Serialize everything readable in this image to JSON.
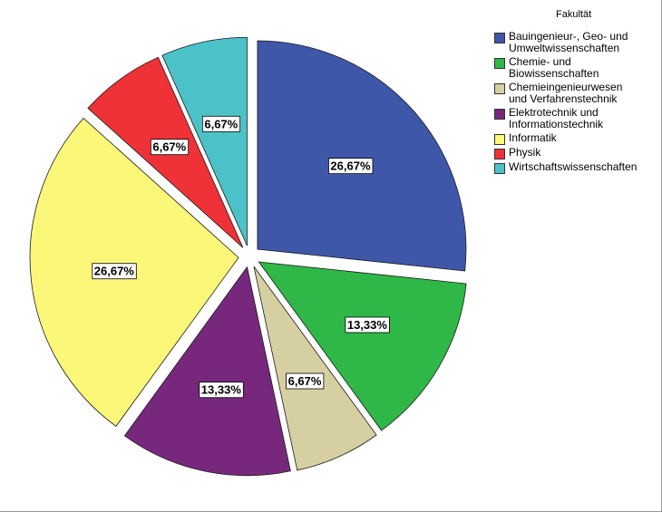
{
  "chart_data": {
    "type": "pie",
    "legend_title": "Fakultät",
    "legend_position": "top-right",
    "slices": [
      {
        "name": "Bauingenieur-, Geo- und\nUmweltwissenschaften",
        "value": 26.67,
        "label": "26,67%",
        "color": "#3f57a8",
        "exploded": true
      },
      {
        "name": "Chemie- und\nBiowissenschaften",
        "value": 13.33,
        "label": "13,33%",
        "color": "#2fb847",
        "exploded": true
      },
      {
        "name": "Chemieingenieurwesen\nund Verfahrenstechnik",
        "value": 6.67,
        "label": "6,67%",
        "color": "#d6cfa1",
        "exploded": true
      },
      {
        "name": "Elektrotechnik und\nInformationstechnik",
        "value": 13.33,
        "label": "13,33%",
        "color": "#77287c",
        "exploded": true
      },
      {
        "name": "Informatik",
        "value": 26.67,
        "label": "26,67%",
        "color": "#fbf779",
        "exploded": true
      },
      {
        "name": "Physik",
        "value": 6.67,
        "label": "6,67%",
        "color": "#ef3237",
        "exploded": true
      },
      {
        "name": "Wirtschaftswissenschaften",
        "value": 6.67,
        "label": "6,67%",
        "color": "#4bc2c8",
        "exploded": true
      }
    ]
  }
}
